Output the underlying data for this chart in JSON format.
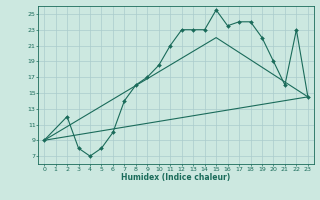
{
  "xlabel": "Humidex (Indice chaleur)",
  "bg_color": "#cce8e0",
  "grid_color": "#aacccc",
  "line_color": "#1a6b5a",
  "xlim": [
    -0.5,
    23.5
  ],
  "ylim": [
    6,
    26
  ],
  "xticks": [
    0,
    1,
    2,
    3,
    4,
    5,
    6,
    7,
    8,
    9,
    10,
    11,
    12,
    13,
    14,
    15,
    16,
    17,
    18,
    19,
    20,
    21,
    22,
    23
  ],
  "yticks": [
    7,
    9,
    11,
    13,
    15,
    17,
    19,
    21,
    23,
    25
  ],
  "series1_x": [
    0,
    2,
    3,
    4,
    5,
    6,
    7,
    8,
    9,
    10,
    11,
    12,
    13,
    14,
    15,
    16,
    17,
    18,
    19,
    20,
    21,
    22,
    23
  ],
  "series1_y": [
    9,
    12,
    8,
    7,
    8,
    10,
    14,
    16,
    17,
    18.5,
    21,
    23,
    23,
    23,
    25.5,
    23.5,
    24,
    24,
    22,
    19,
    16,
    23,
    14.5
  ],
  "series2_x": [
    0,
    23
  ],
  "series2_y": [
    9,
    14.5
  ],
  "series3_x": [
    0,
    15,
    23
  ],
  "series3_y": [
    9,
    22,
    14.5
  ]
}
